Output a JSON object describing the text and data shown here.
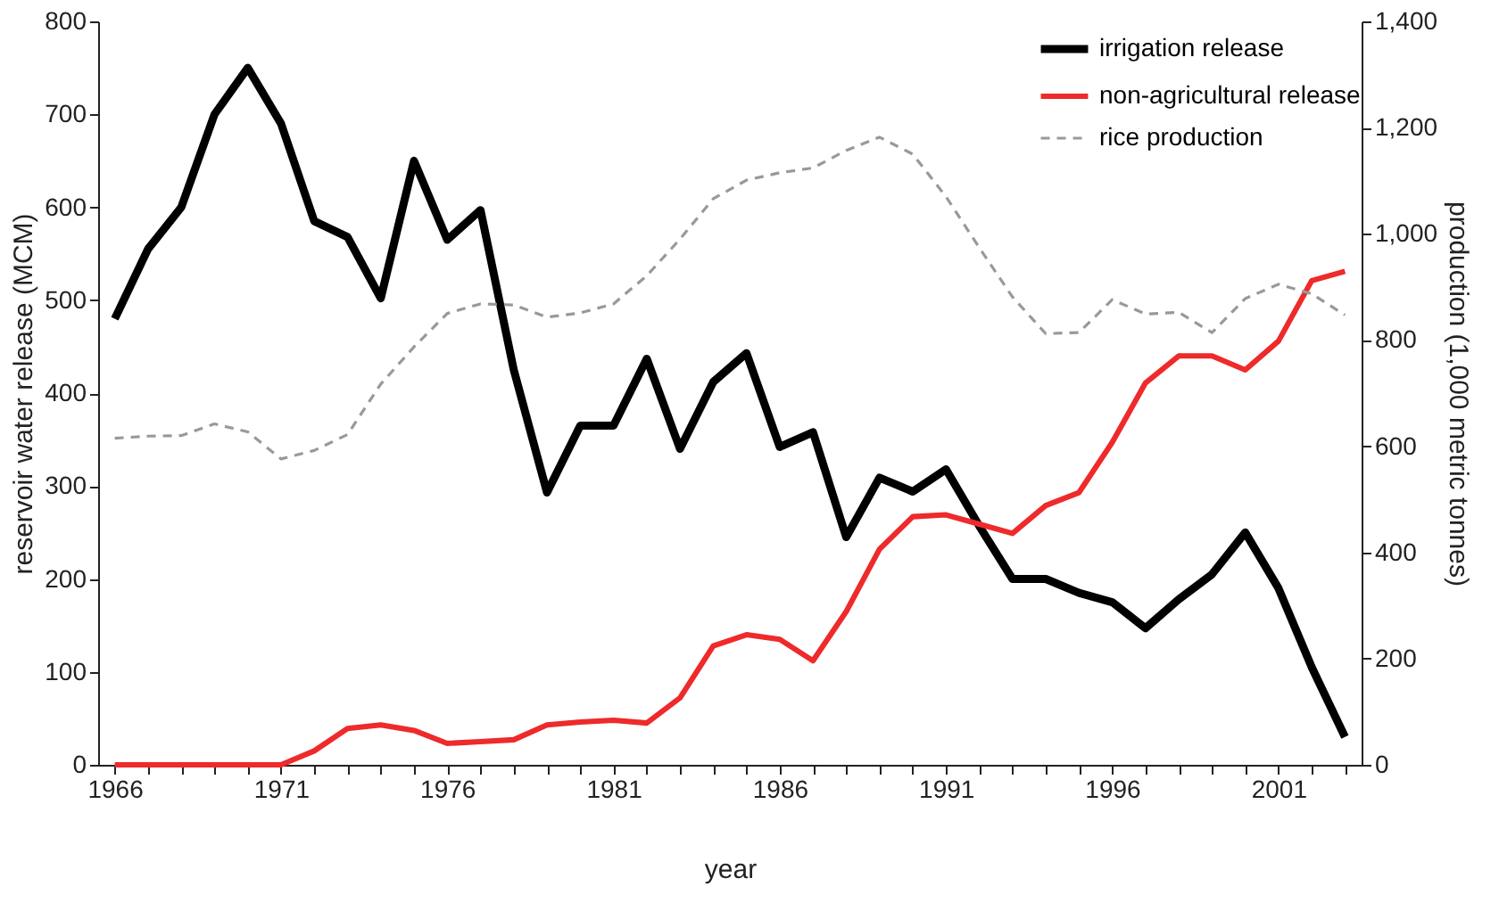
{
  "chart_data": {
    "type": "line",
    "xlabel": "year",
    "ylabel": "reservoir water release (MCM)",
    "y2label": "production (1,000 metric tonnes)",
    "x": [
      1966,
      1967,
      1968,
      1969,
      1970,
      1971,
      1972,
      1973,
      1974,
      1975,
      1976,
      1977,
      1978,
      1979,
      1980,
      1981,
      1982,
      1983,
      1984,
      1985,
      1986,
      1987,
      1988,
      1989,
      1990,
      1991,
      1992,
      1993,
      1994,
      1995,
      1996,
      1997,
      1998,
      1999,
      2000,
      2001,
      2002,
      2003
    ],
    "series": [
      {
        "name": "irrigation release",
        "color": "#000000",
        "line_style": "solid",
        "values": [
          480,
          555,
          600,
          700,
          750,
          690,
          585,
          568,
          502,
          650,
          565,
          597,
          425,
          293,
          365,
          365,
          437,
          340,
          412,
          443,
          342,
          358,
          245,
          309,
          294,
          318,
          257,
          200,
          200,
          185,
          175,
          147,
          178,
          205,
          250,
          190,
          105,
          30
        ]
      },
      {
        "name": "non-agricultural release",
        "color": "#ee2a2a",
        "line_style": "solid",
        "values": [
          0,
          0,
          0,
          0,
          0,
          0,
          15,
          39,
          43,
          37,
          23,
          25,
          27,
          43,
          46,
          48,
          45,
          72,
          128,
          140,
          135,
          112,
          165,
          232,
          267,
          269,
          259,
          249,
          279,
          293,
          347,
          411,
          440,
          440,
          425,
          456,
          521,
          531
        ]
      },
      {
        "name": "rice production",
        "color": "#999999",
        "line_style": "dashed",
        "axis": "y2",
        "values": [
          615,
          619,
          620,
          642,
          627,
          576,
          592,
          622,
          717,
          787,
          850,
          868,
          866,
          843,
          851,
          868,
          921,
          990,
          1066,
          1101,
          1115,
          1124,
          1157,
          1182,
          1150,
          1070,
          974,
          881,
          812,
          814,
          876,
          849,
          852,
          814,
          878,
          905,
          887,
          847
        ]
      }
    ],
    "xlim": [
      1965.5,
      2003.5
    ],
    "xticks": [
      1966,
      {
        "value": 1967,
        "label": null
      },
      {
        "value": 1968,
        "label": null
      },
      {
        "value": 1969,
        "label": null
      },
      {
        "value": 1970,
        "label": null
      },
      1971,
      {
        "value": 1972,
        "label": null
      },
      {
        "value": 1973,
        "label": null
      },
      {
        "value": 1974,
        "label": null
      },
      {
        "value": 1975,
        "label": null
      },
      1976,
      {
        "value": 1977,
        "label": null
      },
      {
        "value": 1978,
        "label": null
      },
      {
        "value": 1979,
        "label": null
      },
      {
        "value": 1980,
        "label": null
      },
      1981,
      {
        "value": 1982,
        "label": null
      },
      {
        "value": 1983,
        "label": null
      },
      {
        "value": 1984,
        "label": null
      },
      {
        "value": 1985,
        "label": null
      },
      1986,
      {
        "value": 1987,
        "label": null
      },
      {
        "value": 1988,
        "label": null
      },
      {
        "value": 1989,
        "label": null
      },
      {
        "value": 1990,
        "label": null
      },
      1991,
      {
        "value": 1992,
        "label": null
      },
      {
        "value": 1993,
        "label": null
      },
      {
        "value": 1994,
        "label": null
      },
      {
        "value": 1995,
        "label": null
      },
      1996,
      {
        "value": 1997,
        "label": null
      },
      {
        "value": 1998,
        "label": null
      },
      {
        "value": 1999,
        "label": null
      },
      {
        "value": 2000,
        "label": null
      },
      2001,
      {
        "value": 2002,
        "label": null
      },
      {
        "value": 2003,
        "label": null
      }
    ],
    "ylim": [
      0,
      800
    ],
    "yticks": [
      0,
      100,
      200,
      300,
      400,
      500,
      600,
      700,
      800
    ],
    "y2lim": [
      0,
      1400
    ],
    "y2ticks": [
      0,
      200,
      400,
      600,
      800,
      {
        "value": 1000,
        "label": "1,000"
      },
      {
        "value": 1200,
        "label": "1,200"
      },
      {
        "value": 1400,
        "label": "1,400"
      }
    ],
    "legend": "top right",
    "marker": "none",
    "grid": false
  }
}
